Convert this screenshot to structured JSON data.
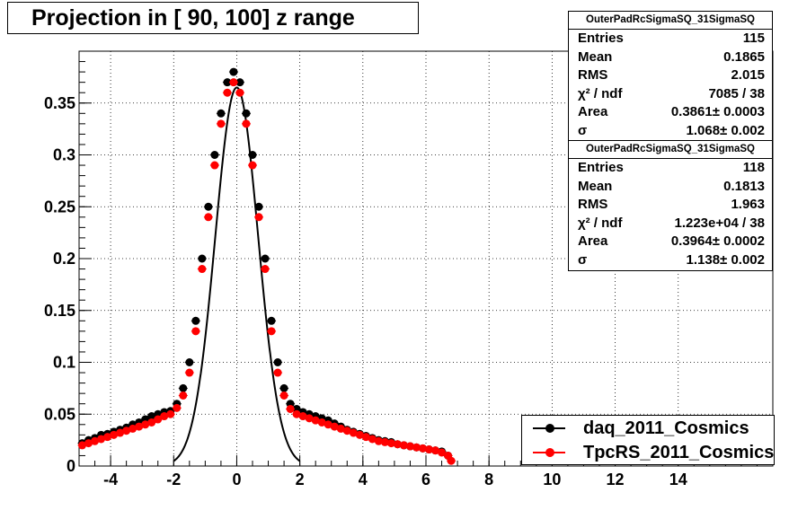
{
  "title": "Projection in [  90, 100] z range",
  "stats": [
    {
      "name": "OuterPadRcSigmaSQ_31SigmaSQ",
      "rows": [
        {
          "label": "Entries",
          "value": "115"
        },
        {
          "label": "Mean",
          "value": "0.1865"
        },
        {
          "label": "RMS",
          "value": "2.015"
        },
        {
          "label": "χ² / ndf",
          "value": "7085 / 38"
        },
        {
          "label": "Area",
          "value": "0.3861± 0.0003"
        },
        {
          "label": "σ",
          "value": "1.068± 0.002"
        }
      ]
    },
    {
      "name": "OuterPadRcSigmaSQ_31SigmaSQ",
      "rows": [
        {
          "label": "Entries",
          "value": "118"
        },
        {
          "label": "Mean",
          "value": "0.1813"
        },
        {
          "label": "RMS",
          "value": "1.963"
        },
        {
          "label": "χ² / ndf",
          "value": "1.223e+04 / 38"
        },
        {
          "label": "Area",
          "value": "0.3964± 0.0002"
        },
        {
          "label": "σ",
          "value": "1.138± 0.002"
        }
      ]
    }
  ],
  "legend": [
    {
      "label": "daq_2011_Cosmics",
      "color": "#000000"
    },
    {
      "label": "TpcRS_2011_Cosmics",
      "color": "#ff0000"
    }
  ],
  "colors": {
    "daq": "#000000",
    "tpcrs": "#ff0000",
    "fit": "#000000"
  },
  "chart_data": {
    "type": "scatter",
    "title": "Projection in [  90, 100] z range",
    "xlim": [
      -5,
      17
    ],
    "ylim": [
      0,
      0.4
    ],
    "x_ticks": [
      -4,
      -2,
      0,
      2,
      4,
      6,
      8,
      10,
      12,
      14
    ],
    "x_tick_labels": [
      "-4",
      "-2",
      "0",
      "2",
      "4",
      "6",
      "8",
      "10",
      "12",
      "14"
    ],
    "y_ticks": [
      0,
      0.05,
      0.1,
      0.15,
      0.2,
      0.25,
      0.3,
      0.35
    ],
    "y_tick_labels": [
      "0",
      "0.05",
      "0.1",
      "0.15",
      "0.2",
      "0.25",
      "0.3",
      "0.35"
    ],
    "grid": true,
    "legend_position": "bottom-right",
    "series": [
      {
        "name": "daq_2011_Cosmics",
        "color": "#000000",
        "x": [
          -4.9,
          -4.7,
          -4.5,
          -4.3,
          -4.1,
          -3.9,
          -3.7,
          -3.5,
          -3.3,
          -3.1,
          -2.9,
          -2.7,
          -2.5,
          -2.3,
          -2.1,
          -1.9,
          -1.7,
          -1.5,
          -1.3,
          -1.1,
          -0.9,
          -0.7,
          -0.5,
          -0.3,
          -0.1,
          0.1,
          0.3,
          0.5,
          0.7,
          0.9,
          1.1,
          1.3,
          1.5,
          1.7,
          1.9,
          2.1,
          2.3,
          2.5,
          2.7,
          2.9,
          3.1,
          3.3,
          3.5,
          3.7,
          3.9,
          4.1,
          4.3,
          4.5,
          4.7,
          4.9,
          5.1,
          5.3,
          5.5,
          5.7,
          5.9,
          6.1,
          6.3,
          6.5,
          6.7
        ],
        "y": [
          0.022,
          0.025,
          0.027,
          0.03,
          0.031,
          0.033,
          0.035,
          0.037,
          0.04,
          0.042,
          0.045,
          0.048,
          0.05,
          0.052,
          0.053,
          0.06,
          0.075,
          0.1,
          0.14,
          0.2,
          0.25,
          0.3,
          0.34,
          0.37,
          0.38,
          0.37,
          0.34,
          0.3,
          0.25,
          0.2,
          0.14,
          0.1,
          0.075,
          0.06,
          0.055,
          0.052,
          0.05,
          0.048,
          0.046,
          0.044,
          0.041,
          0.038,
          0.035,
          0.033,
          0.031,
          0.029,
          0.027,
          0.025,
          0.024,
          0.023,
          0.021,
          0.02,
          0.019,
          0.018,
          0.017,
          0.016,
          0.015,
          0.014,
          0.01
        ]
      },
      {
        "name": "TpcRS_2011_Cosmics",
        "color": "#ff0000",
        "x": [
          -4.9,
          -4.7,
          -4.5,
          -4.3,
          -4.1,
          -3.9,
          -3.7,
          -3.5,
          -3.3,
          -3.1,
          -2.9,
          -2.7,
          -2.5,
          -2.3,
          -2.1,
          -1.9,
          -1.7,
          -1.5,
          -1.3,
          -1.1,
          -0.9,
          -0.7,
          -0.5,
          -0.3,
          -0.1,
          0.1,
          0.3,
          0.5,
          0.7,
          0.9,
          1.1,
          1.3,
          1.5,
          1.7,
          1.9,
          2.1,
          2.3,
          2.5,
          2.7,
          2.9,
          3.1,
          3.3,
          3.5,
          3.7,
          3.9,
          4.1,
          4.3,
          4.5,
          4.7,
          4.9,
          5.1,
          5.3,
          5.5,
          5.7,
          5.9,
          6.1,
          6.3,
          6.5,
          6.7,
          6.8
        ],
        "y": [
          0.02,
          0.022,
          0.024,
          0.026,
          0.028,
          0.03,
          0.032,
          0.034,
          0.036,
          0.038,
          0.04,
          0.042,
          0.045,
          0.048,
          0.05,
          0.056,
          0.068,
          0.09,
          0.13,
          0.19,
          0.24,
          0.29,
          0.33,
          0.36,
          0.37,
          0.36,
          0.33,
          0.29,
          0.24,
          0.19,
          0.13,
          0.09,
          0.068,
          0.055,
          0.05,
          0.048,
          0.046,
          0.044,
          0.042,
          0.04,
          0.038,
          0.036,
          0.034,
          0.032,
          0.03,
          0.028,
          0.026,
          0.024,
          0.023,
          0.022,
          0.021,
          0.02,
          0.019,
          0.018,
          0.017,
          0.016,
          0.015,
          0.013,
          0.01,
          0.005
        ]
      }
    ]
  }
}
